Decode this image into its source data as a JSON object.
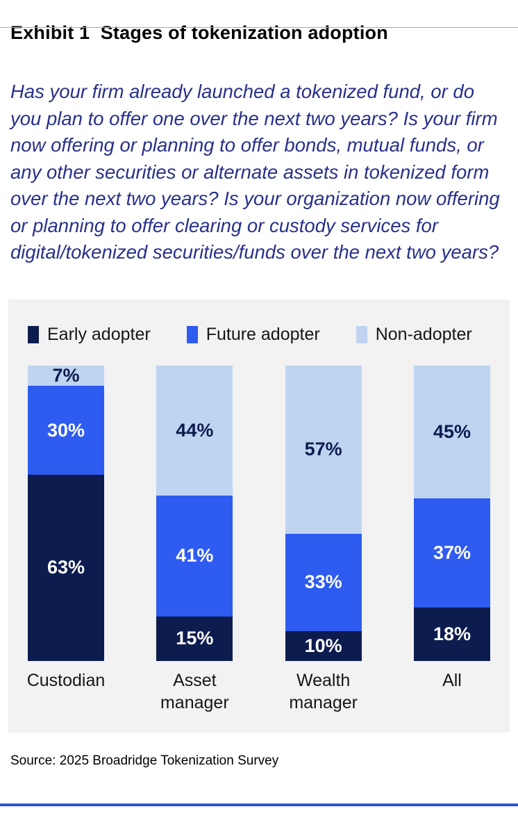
{
  "page": {
    "title": "Exhibit 1  Stages of tokenization adoption",
    "question": "Has your firm already launched a tokenized fund, or do you plan to offer one over the next two years? Is your firm now offering or planning to offer bonds, mutual funds, or any other securities or alternate assets in tokenized form over the next two years? Is your organization now offering or planning to offer clearing or custody services for digital/tokenized securities/funds over the next two years?",
    "source": "Source: 2025 Broadridge Tokenization Survey"
  },
  "colors": {
    "early": "#0d1c4f",
    "future": "#2e5bf0",
    "non": "#bfd4f0",
    "panel_bg": "#f2f2f2",
    "question_text": "#28308a",
    "top_rule": "#ababab",
    "bottom_rule": "#2d55d5"
  },
  "chart_data": {
    "type": "bar",
    "stacked": true,
    "categories": [
      "Custodian",
      "Asset manager",
      "Wealth manager",
      "All"
    ],
    "series": [
      {
        "name": "Early adopter",
        "values": [
          63,
          15,
          10,
          18
        ],
        "color_key": "early",
        "label_color": "#ffffff"
      },
      {
        "name": "Future adopter",
        "values": [
          30,
          41,
          33,
          37
        ],
        "color_key": "future",
        "label_color": "#ffffff"
      },
      {
        "name": "Non-adopter",
        "values": [
          7,
          44,
          57,
          45
        ],
        "color_key": "non",
        "label_color": "#0d1c4f"
      }
    ],
    "value_suffix": "%",
    "ylim": [
      0,
      100
    ],
    "grid": false,
    "legend_position": "top"
  }
}
